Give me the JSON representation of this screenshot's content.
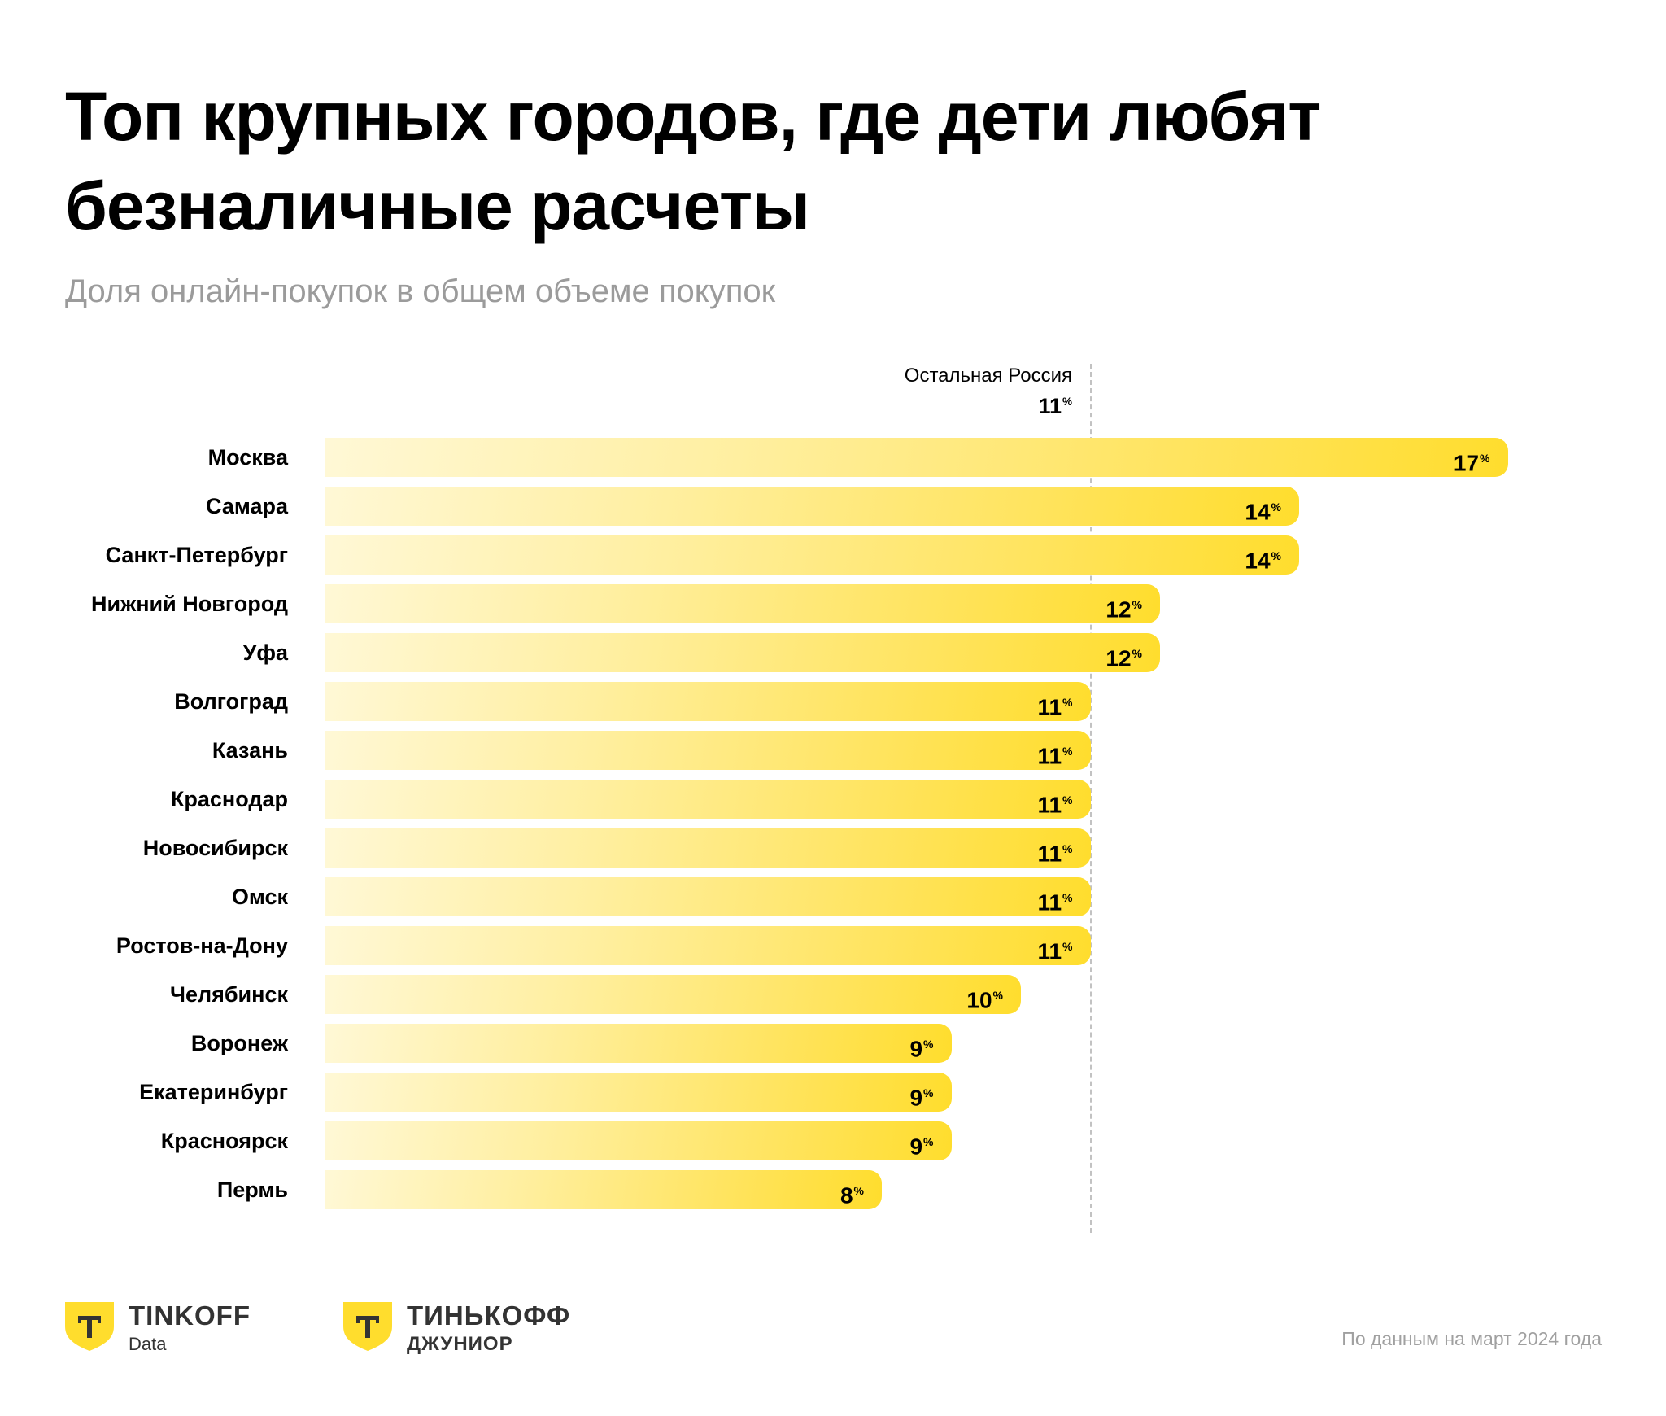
{
  "header": {
    "title": "Топ крупных городов, где дети любят безналичные расчеты",
    "subtitle": "Доля онлайн-покупок в общем объеме покупок"
  },
  "chart_data": {
    "type": "bar",
    "orientation": "horizontal",
    "title": "Топ крупных городов, где дети любят безналичные расчеты",
    "subtitle": "Доля онлайн-покупок в общем объеме покупок",
    "unit": "%",
    "xlim": [
      0,
      17
    ],
    "grid": false,
    "categories": [
      "Москва",
      "Самара",
      "Санкт-Петербург",
      "Нижний Новгород",
      "Уфа",
      "Волгоград",
      "Казань",
      "Краснодар",
      "Новосибирск",
      "Омск",
      "Ростов-на-Дону",
      "Челябинск",
      "Воронеж",
      "Екатеринбург",
      "Красноярск",
      "Пермь"
    ],
    "values": [
      17,
      14,
      14,
      12,
      12,
      11,
      11,
      11,
      11,
      11,
      11,
      10,
      9,
      9,
      9,
      8
    ],
    "reference_line": {
      "label": "Остальная Россия",
      "value": 11,
      "style": "dashed"
    },
    "colors": {
      "bar_start": "#fff8d6",
      "bar_end": "#ffdd2d",
      "refline": "#c2c2c2"
    }
  },
  "footer": {
    "logos": [
      {
        "name": "TINKOFF",
        "sub": "Data",
        "icon": "tinkoff-shield-icon"
      },
      {
        "name": "ТИНЬКОФФ",
        "sub": "ДЖУНИОР",
        "icon": "tinkoff-shield-icon"
      }
    ],
    "note": "По данным на март 2024 года"
  },
  "percent_sign": "%"
}
